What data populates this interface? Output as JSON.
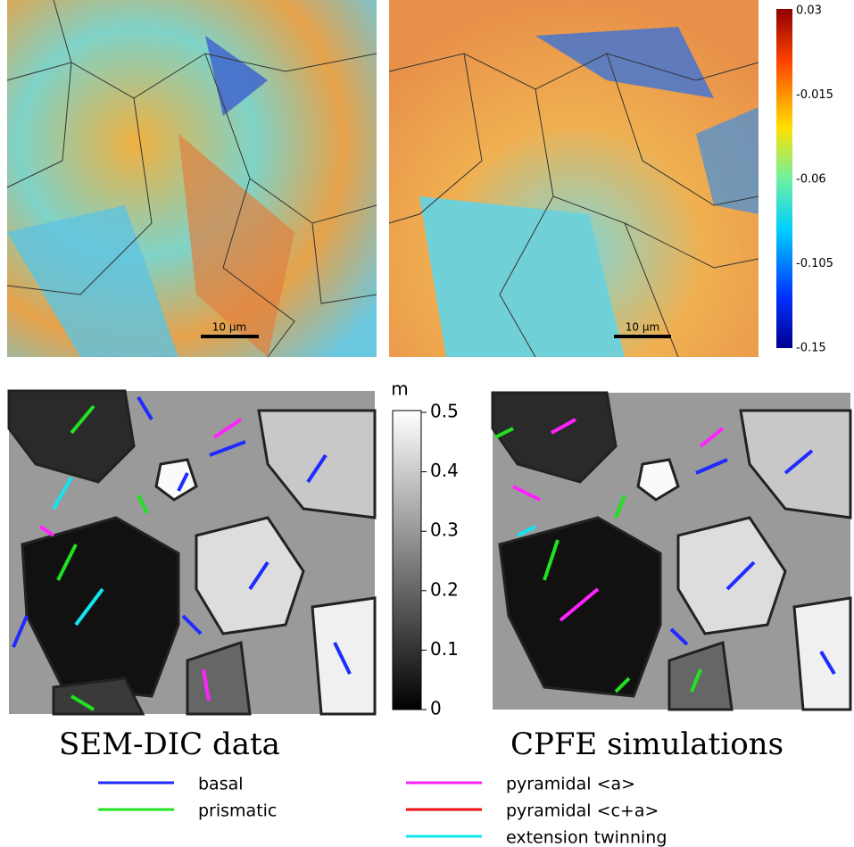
{
  "strain_colorbar": {
    "ticks": [
      "0.03",
      "-0.015",
      "-0.06",
      "-0.105",
      "-0.15"
    ]
  },
  "scale_bars": [
    "10 µm",
    "10 µm"
  ],
  "schmid_colorbar": {
    "label": "m",
    "ticks": [
      "0.5",
      "0.4",
      "0.3",
      "0.2",
      "0.1",
      "0"
    ]
  },
  "captions": [
    "SEM-DIC data",
    "CPFE simulations"
  ],
  "legend": [
    {
      "name": "basal",
      "color": "#1f2bff"
    },
    {
      "name": "prismatic",
      "color": "#22e022"
    },
    {
      "name": "pyramidal <a>",
      "color": "#ff22ff"
    },
    {
      "name": "pyramidal <c+a>",
      "color": "#ee1111"
    },
    {
      "name": "extension twinning",
      "color": "#11e5f0"
    }
  ]
}
